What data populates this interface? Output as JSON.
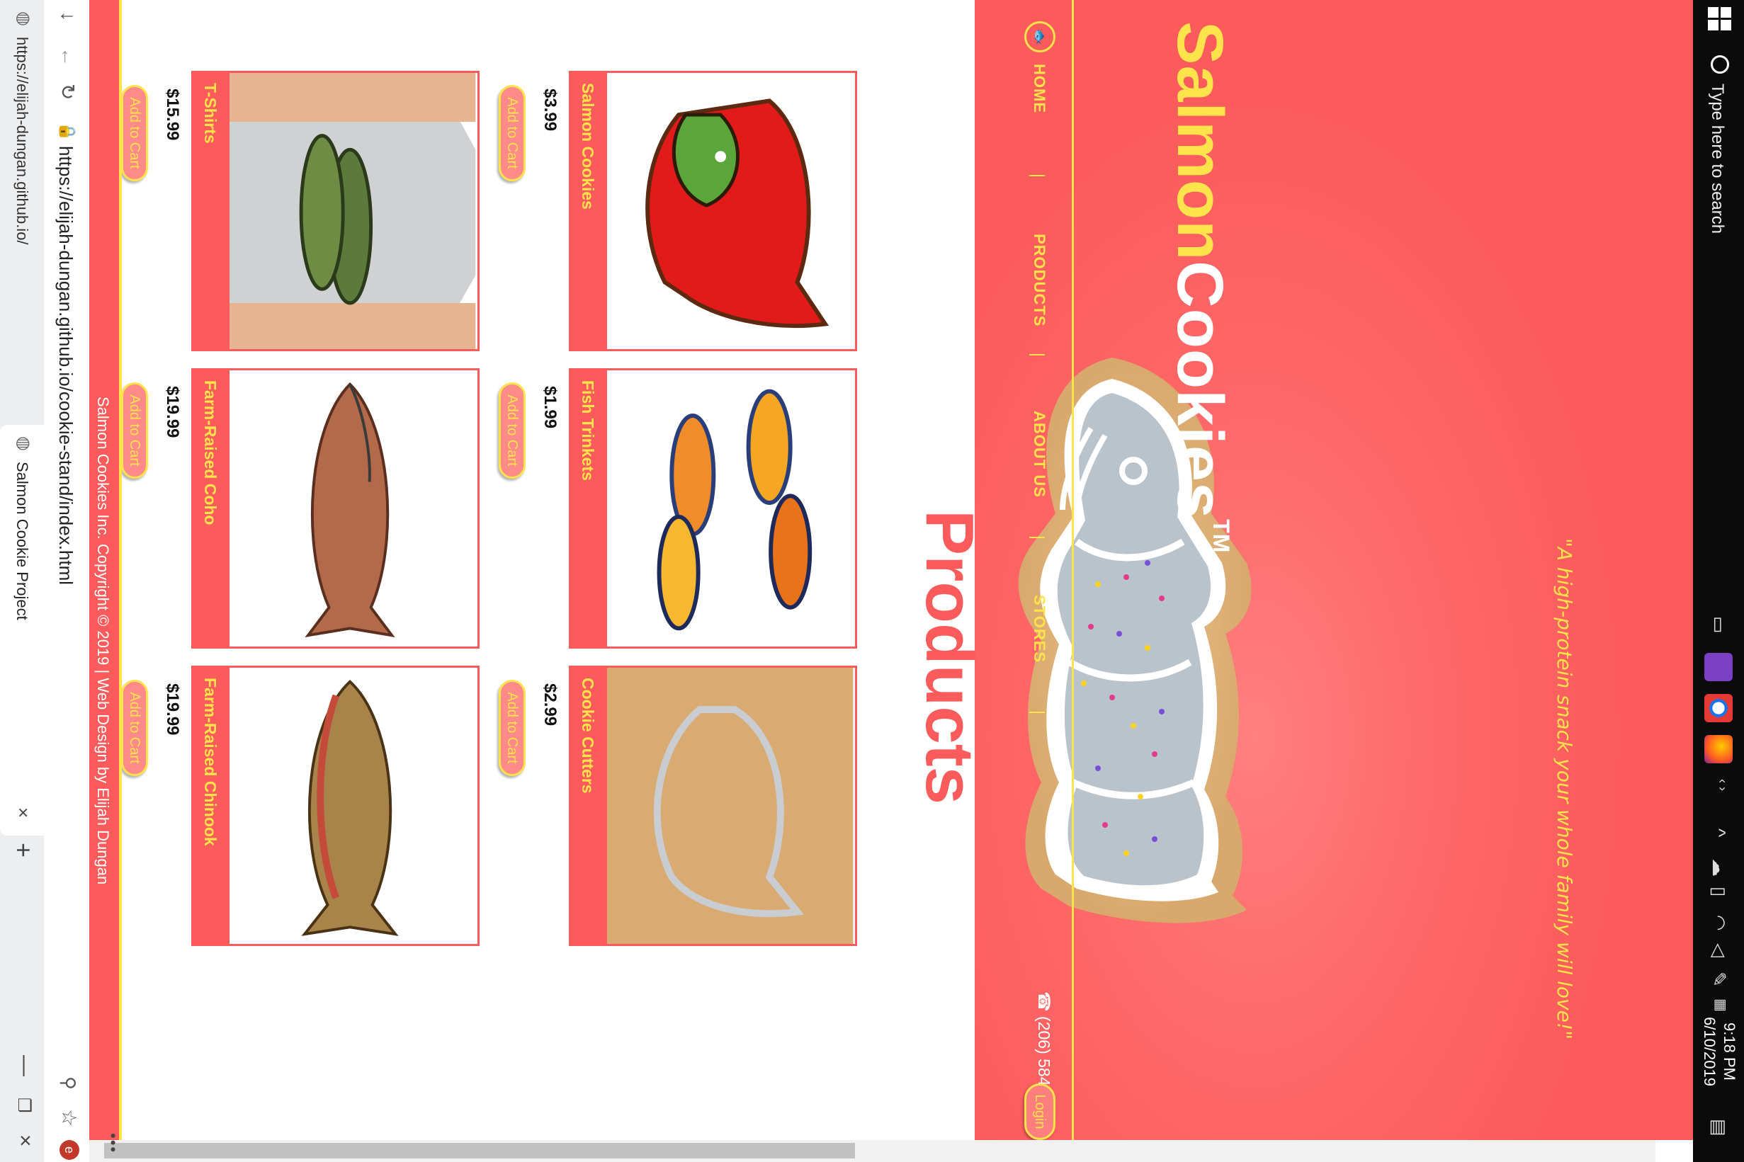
{
  "taskbar": {
    "search_placeholder": "Type here to search",
    "time": "9:18 PM",
    "date": "6/10/2019"
  },
  "browser": {
    "tabs": [
      {
        "title": "https://elijah-dungan.github.io/"
      },
      {
        "title": "Salmon Cookie Project"
      }
    ],
    "new_tab_glyph": "+",
    "url": "https://elijah-dungan.github.io/cookie-stand/index.html",
    "profile_initial": "e",
    "menu_glyph": "•••"
  },
  "site": {
    "brand": {
      "part1": "Salmon",
      "part2": "Cookies",
      "tm": "TM"
    },
    "nav": [
      {
        "label": "HOME"
      },
      {
        "label": "PRODUCTS"
      },
      {
        "label": "ABOUT US"
      },
      {
        "label": "STORES"
      }
    ],
    "phone": "☎ (206) 584-2744",
    "login_label": "Login",
    "tagline": "\"A high-protein snack your whole family will love!\"",
    "products_title": "Products",
    "products": [
      {
        "name": "Salmon Cookies",
        "price": "$3.99",
        "cta": "Add to Cart"
      },
      {
        "name": "Fish Trinkets",
        "price": "$1.99",
        "cta": "Add to Cart"
      },
      {
        "name": "Cookie Cutters",
        "price": "$2.99",
        "cta": "Add to Cart"
      },
      {
        "name": "T-Shirts",
        "price": "$15.99",
        "cta": "Add to Cart"
      },
      {
        "name": "Farm-Raised Coho",
        "price": "$19.99",
        "cta": "Add to Cart"
      },
      {
        "name": "Farm-Raised Chinook",
        "price": "$19.99",
        "cta": "Add to Cart"
      }
    ],
    "footer": "Salmon Cookies Inc. Copyright © 2019 | Web Design by Elijah Dungan",
    "logo_glyph": "🐟"
  },
  "colors": {
    "brand_red": "#fb5b5b",
    "brand_yellow": "#ffe34b"
  }
}
